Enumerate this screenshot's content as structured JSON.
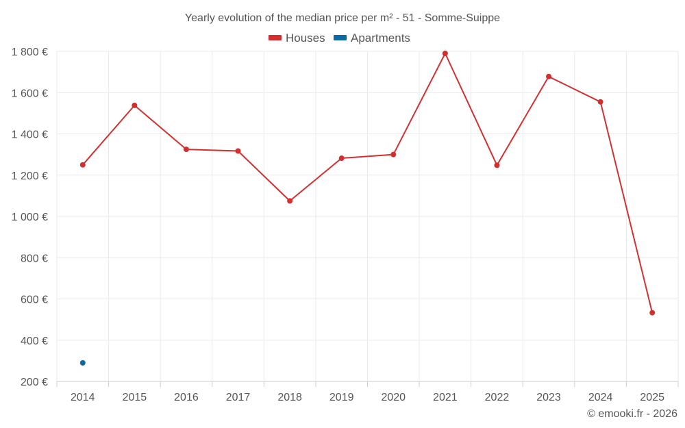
{
  "chart_data": {
    "type": "line",
    "title": "Yearly evolution of the median price per m² - 51 - Somme-Suippe",
    "categories": [
      "2014",
      "2015",
      "2016",
      "2017",
      "2018",
      "2019",
      "2020",
      "2021",
      "2022",
      "2023",
      "2024",
      "2025"
    ],
    "series": [
      {
        "name": "Houses",
        "color": "#d32f2f",
        "values": [
          1250,
          1538,
          1325,
          1317,
          1075,
          1282,
          1300,
          1790,
          1248,
          1678,
          1555,
          533
        ]
      },
      {
        "name": "Apartments",
        "color": "#0d6aa1",
        "values": [
          290,
          null,
          null,
          null,
          null,
          null,
          null,
          null,
          null,
          null,
          null,
          null
        ]
      }
    ],
    "ylim": [
      200,
      1800
    ],
    "yticks": [
      200,
      400,
      600,
      800,
      1000,
      1200,
      1400,
      1600,
      1800
    ],
    "ytick_labels": [
      "200 €",
      "400 €",
      "600 €",
      "800 €",
      "1 000 €",
      "1 200 €",
      "1 400 €",
      "1 600 €",
      "1 800 €"
    ],
    "grid": true,
    "legend_position": "top-center"
  },
  "credit": "© emooki.fr - 2026"
}
